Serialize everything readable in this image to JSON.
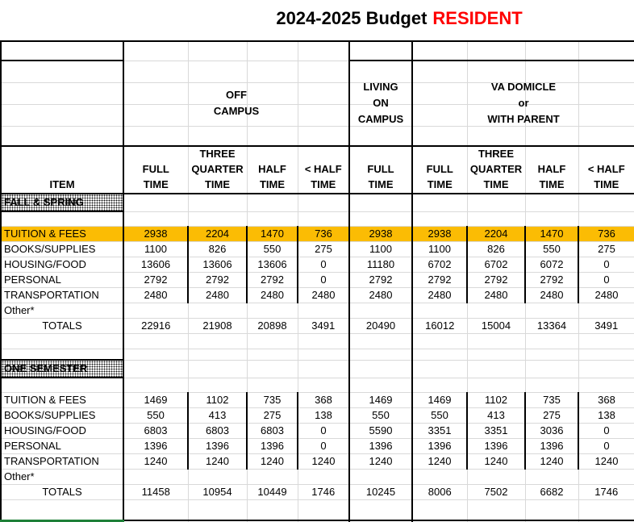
{
  "title": {
    "main": "2024-2025 Budget",
    "highlight": "RESIDENT"
  },
  "colors": {
    "highlight_row": "#fbbc04",
    "title_highlight": "#ff0000",
    "gridline": "#d9d9d9",
    "thick_border": "#000000",
    "selection_green": "#1e8038"
  },
  "header": {
    "item": "ITEM",
    "groups": {
      "off_campus": [
        "OFF",
        "CAMPUS"
      ],
      "living_on_campus": [
        "LIVING",
        "ON",
        "CAMPUS"
      ],
      "va_domicile": [
        "VA DOMICLE",
        "or",
        "WITH PARENT"
      ]
    },
    "cols": [
      [
        "FULL",
        "TIME"
      ],
      [
        "THREE",
        "QUARTER",
        "TIME"
      ],
      [
        "HALF",
        "TIME"
      ],
      [
        "< HALF",
        "TIME"
      ],
      [
        "FULL",
        "TIME"
      ],
      [
        "FULL",
        "TIME"
      ],
      [
        "THREE",
        "QUARTER",
        "TIME"
      ],
      [
        "HALF",
        "TIME"
      ],
      [
        "< HALF",
        "TIME"
      ]
    ]
  },
  "sections": [
    {
      "label": "FALL & SPRING",
      "rows": [
        {
          "label": "TUITION & FEES",
          "highlight": true,
          "boxed": true,
          "align": "left",
          "values": [
            "2938",
            "2204",
            "1470",
            "736",
            "2938",
            "2938",
            "2204",
            "1470",
            "736"
          ]
        },
        {
          "label": "BOOKS/SUPPLIES",
          "highlight": false,
          "boxed": true,
          "align": "left",
          "values": [
            "1100",
            "826",
            "550",
            "275",
            "1100",
            "1100",
            "826",
            "550",
            "275"
          ]
        },
        {
          "label": "HOUSING/FOOD",
          "highlight": false,
          "boxed": true,
          "align": "left",
          "values": [
            "13606",
            "13606",
            "13606",
            "0",
            "11180",
            "6702",
            "6702",
            "6072",
            "0"
          ]
        },
        {
          "label": "PERSONAL",
          "highlight": false,
          "boxed": true,
          "align": "left",
          "values": [
            "2792",
            "2792",
            "2792",
            "0",
            "2792",
            "2792",
            "2792",
            "2792",
            "0"
          ]
        },
        {
          "label": "TRANSPORTATION",
          "highlight": false,
          "boxed": true,
          "align": "left",
          "values": [
            "2480",
            "2480",
            "2480",
            "2480",
            "2480",
            "2480",
            "2480",
            "2480",
            "2480"
          ]
        },
        {
          "label": "Other*",
          "highlight": false,
          "boxed": false,
          "align": "left",
          "values": [
            "",
            "",
            "",
            "",
            "",
            "",
            "",
            "",
            ""
          ]
        },
        {
          "label": "TOTALS",
          "highlight": false,
          "boxed": false,
          "align": "center",
          "values": [
            "22916",
            "21908",
            "20898",
            "3491",
            "20490",
            "16012",
            "15004",
            "13364",
            "3491"
          ]
        }
      ]
    },
    {
      "label": "ONE SEMESTER",
      "rows": [
        {
          "label": "TUITION & FEES",
          "highlight": false,
          "boxed": true,
          "align": "left",
          "values": [
            "1469",
            "1102",
            "735",
            "368",
            "1469",
            "1469",
            "1102",
            "735",
            "368"
          ]
        },
        {
          "label": "BOOKS/SUPPLIES",
          "highlight": false,
          "boxed": true,
          "align": "left",
          "values": [
            "550",
            "413",
            "275",
            "138",
            "550",
            "550",
            "413",
            "275",
            "138"
          ]
        },
        {
          "label": "HOUSING/FOOD",
          "highlight": false,
          "boxed": true,
          "align": "left",
          "values": [
            "6803",
            "6803",
            "6803",
            "0",
            "5590",
            "3351",
            "3351",
            "3036",
            "0"
          ]
        },
        {
          "label": "PERSONAL",
          "highlight": false,
          "boxed": true,
          "align": "left",
          "values": [
            "1396",
            "1396",
            "1396",
            "0",
            "1396",
            "1396",
            "1396",
            "1396",
            "0"
          ]
        },
        {
          "label": "TRANSPORTATION",
          "highlight": false,
          "boxed": true,
          "align": "left",
          "values": [
            "1240",
            "1240",
            "1240",
            "1240",
            "1240",
            "1240",
            "1240",
            "1240",
            "1240"
          ]
        },
        {
          "label": "Other*",
          "highlight": false,
          "boxed": false,
          "align": "left",
          "values": [
            "",
            "",
            "",
            "",
            "",
            "",
            "",
            "",
            ""
          ]
        },
        {
          "label": "TOTALS",
          "highlight": false,
          "boxed": false,
          "align": "center",
          "values": [
            "11458",
            "10954",
            "10449",
            "1746",
            "10245",
            "8006",
            "7502",
            "6682",
            "1746"
          ]
        }
      ]
    }
  ]
}
